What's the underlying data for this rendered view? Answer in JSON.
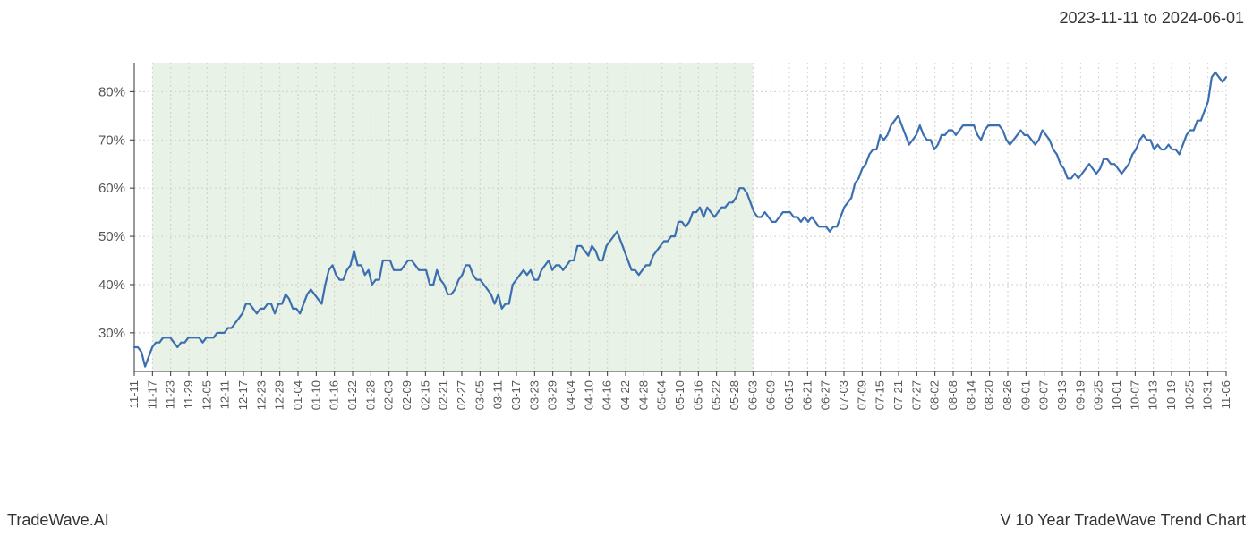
{
  "date_range_label": "2023-11-11 to 2024-06-01",
  "footer_left": "TradeWave.AI",
  "footer_right": "V 10 Year TradeWave Trend Chart",
  "chart": {
    "type": "line",
    "line_color": "#3b6fb0",
    "line_width": 2.2,
    "background_color": "#ffffff",
    "grid_color": "#cfcfcf",
    "grid_dash": "2,3",
    "axis_color": "#333333",
    "tick_font_size": 13,
    "tick_color": "#555555",
    "highlight_band": {
      "fill": "#dcebd8",
      "opacity": 0.65,
      "x_start_index": 1,
      "x_end_index": 34
    },
    "y_axis": {
      "min": 22,
      "max": 86,
      "ticks": [
        30,
        40,
        50,
        60,
        70,
        80
      ],
      "tick_format": "%"
    },
    "x_axis": {
      "labels": [
        "11-11",
        "11-17",
        "11-23",
        "11-29",
        "12-05",
        "12-11",
        "12-17",
        "12-23",
        "12-29",
        "01-04",
        "01-10",
        "01-16",
        "01-22",
        "01-28",
        "02-03",
        "02-09",
        "02-15",
        "02-21",
        "02-27",
        "03-05",
        "03-11",
        "03-17",
        "03-23",
        "03-29",
        "04-04",
        "04-10",
        "04-16",
        "04-22",
        "04-28",
        "05-04",
        "05-10",
        "05-16",
        "05-22",
        "05-28",
        "06-03",
        "06-09",
        "06-15",
        "06-21",
        "06-27",
        "07-03",
        "07-09",
        "07-15",
        "07-21",
        "07-27",
        "08-02",
        "08-08",
        "08-14",
        "08-20",
        "08-26",
        "09-01",
        "09-07",
        "09-13",
        "09-19",
        "09-25",
        "10-01",
        "10-07",
        "10-13",
        "10-19",
        "10-25",
        "10-31",
        "11-06"
      ],
      "label_rotate": -90
    },
    "series": {
      "values": [
        27,
        27,
        26,
        23,
        25,
        27,
        28,
        28,
        29,
        29,
        29,
        28,
        27,
        28,
        28,
        29,
        29,
        29,
        29,
        28,
        29,
        29,
        29,
        30,
        30,
        30,
        31,
        31,
        32,
        33,
        34,
        36,
        36,
        35,
        34,
        35,
        35,
        36,
        36,
        34,
        36,
        36,
        38,
        37,
        35,
        35,
        34,
        36,
        38,
        39,
        38,
        37,
        36,
        40,
        43,
        44,
        42,
        41,
        41,
        43,
        44,
        47,
        44,
        44,
        42,
        43,
        40,
        41,
        41,
        45,
        45,
        45,
        43,
        43,
        43,
        44,
        45,
        45,
        44,
        43,
        43,
        43,
        40,
        40,
        43,
        41,
        40,
        38,
        38,
        39,
        41,
        42,
        44,
        44,
        42,
        41,
        41,
        40,
        39,
        38,
        36,
        38,
        35,
        36,
        36,
        40,
        41,
        42,
        43,
        42,
        43,
        41,
        41,
        43,
        44,
        45,
        43,
        44,
        44,
        43,
        44,
        45,
        45,
        48,
        48,
        47,
        46,
        48,
        47,
        45,
        45,
        48,
        49,
        50,
        51,
        49,
        47,
        45,
        43,
        43,
        42,
        43,
        44,
        44,
        46,
        47,
        48,
        49,
        49,
        50,
        50,
        53,
        53,
        52,
        53,
        55,
        55,
        56,
        54,
        56,
        55,
        54,
        55,
        56,
        56,
        57,
        57,
        58,
        60,
        60,
        59,
        57,
        55,
        54,
        54,
        55,
        54,
        53,
        53,
        54,
        55,
        55,
        55,
        54,
        54,
        53,
        54,
        53,
        54,
        53,
        52,
        52,
        52,
        51,
        52,
        52,
        54,
        56,
        57,
        58,
        61,
        62,
        64,
        65,
        67,
        68,
        68,
        71,
        70,
        71,
        73,
        74,
        75,
        73,
        71,
        69,
        70,
        71,
        73,
        71,
        70,
        70,
        68,
        69,
        71,
        71,
        72,
        72,
        71,
        72,
        73,
        73,
        73,
        73,
        71,
        70,
        72,
        73,
        73,
        73,
        73,
        72,
        70,
        69,
        70,
        71,
        72,
        71,
        71,
        70,
        69,
        70,
        72,
        71,
        70,
        68,
        67,
        65,
        64,
        62,
        62,
        63,
        62,
        63,
        64,
        65,
        64,
        63,
        64,
        66,
        66,
        65,
        65,
        64,
        63,
        64,
        65,
        67,
        68,
        70,
        71,
        70,
        70,
        68,
        69,
        68,
        68,
        69,
        68,
        68,
        67,
        69,
        71,
        72,
        72,
        74,
        74,
        76,
        78,
        83,
        84,
        83,
        82,
        83
      ]
    }
  }
}
